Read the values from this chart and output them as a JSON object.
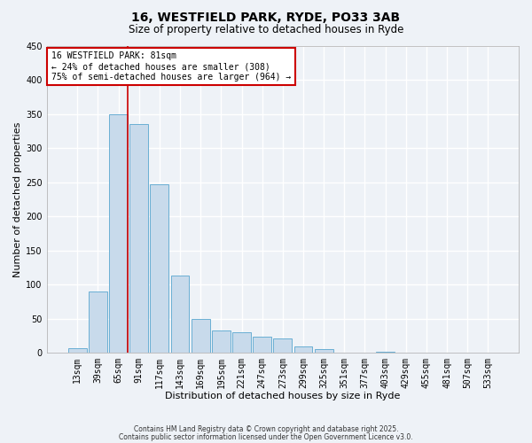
{
  "title": "16, WESTFIELD PARK, RYDE, PO33 3AB",
  "subtitle": "Size of property relative to detached houses in Ryde",
  "xlabel": "Distribution of detached houses by size in Ryde",
  "ylabel": "Number of detached properties",
  "bar_color": "#c8daeb",
  "bar_edge_color": "#6aafd4",
  "background_color": "#eef2f7",
  "grid_color": "#ffffff",
  "categories": [
    "13sqm",
    "39sqm",
    "65sqm",
    "91sqm",
    "117sqm",
    "143sqm",
    "169sqm",
    "195sqm",
    "221sqm",
    "247sqm",
    "273sqm",
    "299sqm",
    "325sqm",
    "351sqm",
    "377sqm",
    "403sqm",
    "429sqm",
    "455sqm",
    "481sqm",
    "507sqm",
    "533sqm"
  ],
  "values": [
    7,
    90,
    350,
    335,
    247,
    113,
    50,
    33,
    30,
    24,
    21,
    10,
    5,
    0,
    0,
    1,
    0,
    0,
    0,
    0,
    0
  ],
  "ylim": [
    0,
    450
  ],
  "yticks": [
    0,
    50,
    100,
    150,
    200,
    250,
    300,
    350,
    400,
    450
  ],
  "vline_x_idx": 2,
  "vline_color": "#cc0000",
  "annotation_text": "16 WESTFIELD PARK: 81sqm\n← 24% of detached houses are smaller (308)\n75% of semi-detached houses are larger (964) →",
  "annotation_box_facecolor": "#ffffff",
  "annotation_box_edgecolor": "#cc0000",
  "footer1": "Contains HM Land Registry data © Crown copyright and database right 2025.",
  "footer2": "Contains public sector information licensed under the Open Government Licence v3.0.",
  "title_fontsize": 10,
  "subtitle_fontsize": 8.5,
  "xlabel_fontsize": 8,
  "ylabel_fontsize": 8,
  "tick_fontsize": 7,
  "annot_fontsize": 7,
  "footer_fontsize": 5.5
}
